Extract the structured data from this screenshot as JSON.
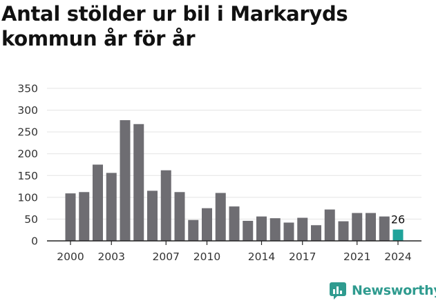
{
  "chart_data": {
    "type": "bar",
    "title": "Antal stölder ur bil i Markaryds kommun år för år",
    "xlabel": "",
    "ylabel": "",
    "x": [
      2000,
      2001,
      2002,
      2003,
      2004,
      2005,
      2006,
      2007,
      2008,
      2009,
      2010,
      2011,
      2012,
      2013,
      2014,
      2015,
      2016,
      2017,
      2018,
      2019,
      2020,
      2021,
      2022,
      2023,
      2024
    ],
    "values": [
      109,
      112,
      175,
      156,
      277,
      268,
      115,
      162,
      112,
      48,
      75,
      110,
      79,
      46,
      56,
      52,
      42,
      53,
      36,
      72,
      45,
      64,
      64,
      56,
      26
    ],
    "ylim": [
      0,
      350
    ],
    "yticks": [
      0,
      50,
      100,
      150,
      200,
      250,
      300,
      350
    ],
    "xticks": [
      2000,
      2003,
      2007,
      2010,
      2014,
      2017,
      2021,
      2024
    ],
    "highlight": {
      "x": 2024,
      "label": "26"
    },
    "grid": true,
    "colors": {
      "bar": "#6e6d72",
      "highlight": "#1fa39a",
      "grid": "#e3e3e3",
      "axis": "#222222"
    }
  },
  "brand": {
    "name": "Newsworthy",
    "icon": "newsworthy-logo-icon",
    "color": "#2f9b8f"
  }
}
